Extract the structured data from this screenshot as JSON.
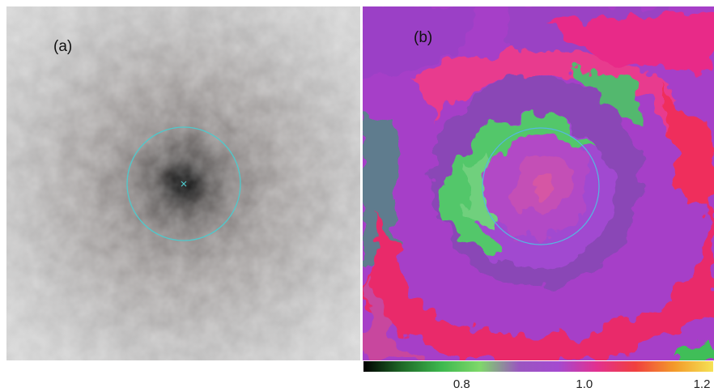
{
  "panel_a": {
    "label": "(a)",
    "colors": {
      "background": "#c2c2c2",
      "halo": "#8e8e8e",
      "core": "#000000",
      "aperture_circle": "#4fc9cc"
    }
  },
  "panel_b": {
    "label": "(b)",
    "colors": {
      "magenta": "#e82a88",
      "violet": "#a63fc8",
      "purple": "#8a46b6",
      "green": "#52c76a",
      "slate": "#5e7c8e",
      "red": "#ee2a55",
      "aperture_circle": "#55b8e0"
    }
  },
  "colorbar": {
    "ticks": [
      {
        "value": 0.8,
        "label": "0.8"
      },
      {
        "value": 1.0,
        "label": "1.0"
      },
      {
        "value": 1.2,
        "label": "1.2"
      }
    ],
    "range": [
      0.64,
      1.21
    ],
    "colors": [
      "#000000",
      "#1f6a28",
      "#3db84e",
      "#7fd86a",
      "#9a56c0",
      "#a44ad0",
      "#e23090",
      "#f03f3f",
      "#f39a2a",
      "#f5e255"
    ]
  }
}
